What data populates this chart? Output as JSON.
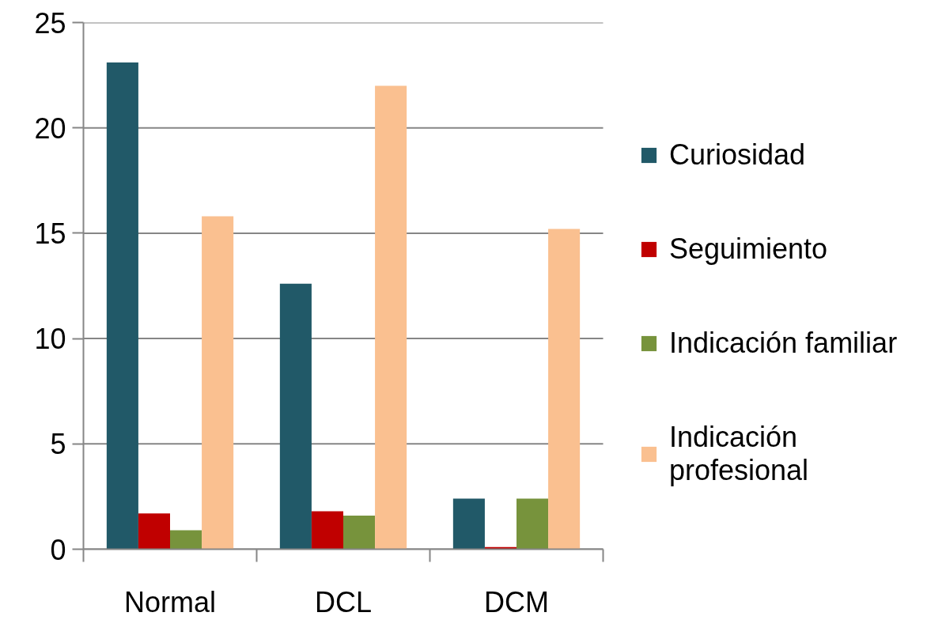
{
  "chart_data": {
    "type": "bar",
    "categories": [
      "Normal",
      "DCL",
      "DCM"
    ],
    "series": [
      {
        "name": "Curiosidad",
        "color": "#215968",
        "values": [
          23.1,
          12.6,
          2.4
        ]
      },
      {
        "name": "Seguimiento",
        "color": "#c00000",
        "values": [
          1.7,
          1.8,
          0.1
        ]
      },
      {
        "name": "Indicación familiar",
        "color": "#77933c",
        "values": [
          0.9,
          1.6,
          2.4
        ]
      },
      {
        "name": "Indicación profesional",
        "color": "#fac090",
        "values": [
          15.8,
          22.0,
          15.2
        ]
      }
    ],
    "ylim": [
      0,
      25
    ],
    "yticks": [
      0,
      5,
      10,
      15,
      20,
      25
    ],
    "grid": "y",
    "legend": "right"
  }
}
